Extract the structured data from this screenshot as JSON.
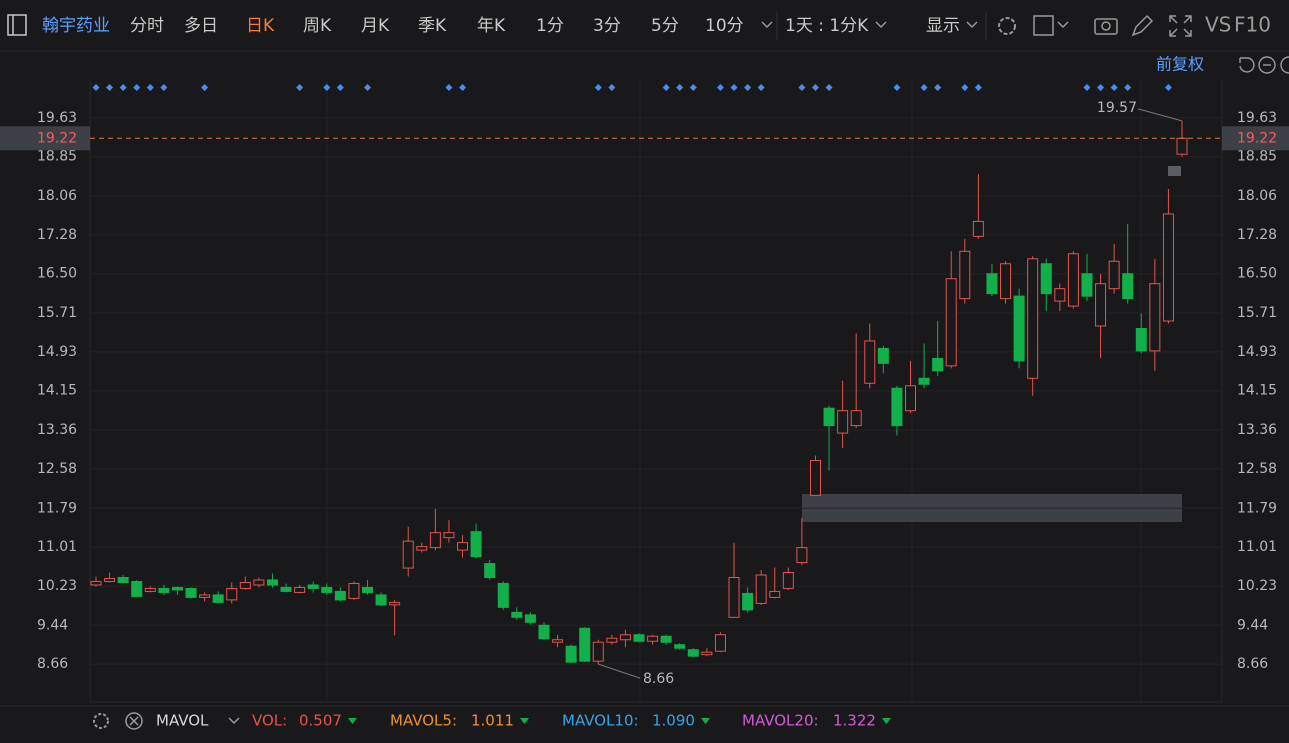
{
  "toolbar": {
    "stock": "翰宇药业",
    "periods": [
      "分时",
      "多日",
      "日K",
      "周K",
      "月K",
      "季K",
      "年K",
      "1分",
      "3分",
      "5分",
      "10分"
    ],
    "interval": "1天 : 1分K",
    "display": "显示",
    "vs": "VS",
    "f10": "F10"
  },
  "adjust": "前复权",
  "chart_data": {
    "type": "candlestick",
    "up_color": "#e5534b",
    "down_color": "#12b04a",
    "ylim": [
      7.94,
      20.39
    ],
    "yticks": [
      19.63,
      18.85,
      18.06,
      17.28,
      {
        "value": 16.5,
        "label": "16.50"
      },
      15.71,
      14.93,
      14.15,
      13.36,
      12.58,
      11.79,
      11.01,
      10.23,
      9.44,
      8.66
    ],
    "grid": true,
    "last_price": 19.22,
    "high_label": 19.57,
    "low_label": 8.66,
    "events": [
      0,
      1,
      2,
      3,
      4,
      5,
      8,
      15,
      17,
      18,
      20,
      26,
      27,
      37,
      38,
      42,
      43,
      44,
      46,
      47,
      48,
      49,
      52,
      53,
      54,
      59,
      61,
      62,
      64,
      65,
      73,
      74,
      75,
      76,
      79
    ],
    "candles": [
      [
        10.25,
        10.42,
        10.22,
        10.32
      ],
      [
        10.32,
        10.5,
        10.3,
        10.38
      ],
      [
        10.4,
        10.45,
        10.28,
        10.3
      ],
      [
        10.32,
        10.35,
        10.0,
        10.02
      ],
      [
        10.12,
        10.22,
        10.1,
        10.18
      ],
      [
        10.18,
        10.25,
        10.05,
        10.1
      ],
      [
        10.2,
        10.22,
        10.05,
        10.15
      ],
      [
        10.18,
        10.2,
        9.98,
        10.0
      ],
      [
        10.0,
        10.1,
        9.92,
        10.05
      ],
      [
        10.05,
        10.12,
        9.88,
        9.9
      ],
      [
        9.95,
        10.3,
        9.88,
        10.18
      ],
      [
        10.18,
        10.42,
        10.15,
        10.3
      ],
      [
        10.25,
        10.4,
        10.2,
        10.35
      ],
      [
        10.35,
        10.48,
        10.2,
        10.25
      ],
      [
        10.2,
        10.28,
        10.1,
        10.12
      ],
      [
        10.1,
        10.25,
        10.08,
        10.2
      ],
      [
        10.25,
        10.32,
        10.1,
        10.18
      ],
      [
        10.2,
        10.28,
        10.05,
        10.1
      ],
      [
        10.12,
        10.2,
        9.92,
        9.95
      ],
      [
        9.98,
        10.32,
        9.95,
        10.28
      ],
      [
        10.2,
        10.35,
        10.05,
        10.1
      ],
      [
        10.05,
        10.1,
        9.82,
        9.85
      ],
      [
        9.85,
        9.95,
        9.24,
        9.9
      ],
      [
        10.59,
        11.42,
        10.42,
        11.13
      ],
      [
        10.95,
        11.1,
        10.9,
        11.02
      ],
      [
        11.0,
        11.78,
        10.95,
        11.3
      ],
      [
        11.2,
        11.55,
        11.1,
        11.3
      ],
      [
        10.95,
        11.25,
        10.8,
        11.1
      ],
      [
        11.32,
        11.48,
        10.78,
        10.82
      ],
      [
        10.68,
        10.75,
        10.35,
        10.4
      ],
      [
        10.28,
        10.32,
        9.75,
        9.8
      ],
      [
        9.7,
        9.8,
        9.55,
        9.6
      ],
      [
        9.65,
        9.7,
        9.45,
        9.5
      ],
      [
        9.44,
        9.5,
        9.15,
        9.17
      ],
      [
        9.1,
        9.25,
        9.0,
        9.15
      ],
      [
        9.02,
        9.05,
        8.68,
        8.7
      ],
      [
        9.38,
        9.4,
        8.7,
        8.72
      ],
      [
        8.72,
        9.15,
        8.66,
        9.1
      ],
      [
        9.1,
        9.25,
        9.05,
        9.18
      ],
      [
        9.15,
        9.35,
        9.0,
        9.25
      ],
      [
        9.25,
        9.28,
        9.1,
        9.12
      ],
      [
        9.12,
        9.25,
        9.05,
        9.22
      ],
      [
        9.22,
        9.25,
        9.05,
        9.1
      ],
      [
        9.05,
        9.08,
        8.95,
        8.98
      ],
      [
        8.95,
        8.98,
        8.8,
        8.82
      ],
      [
        8.85,
        8.98,
        8.82,
        8.9
      ],
      [
        8.92,
        9.3,
        8.9,
        9.25
      ],
      [
        9.6,
        11.1,
        9.6,
        10.4
      ],
      [
        10.08,
        10.2,
        9.7,
        9.75
      ],
      [
        9.88,
        10.55,
        9.85,
        10.45
      ],
      [
        10.0,
        10.6,
        9.98,
        10.12
      ],
      [
        10.18,
        10.6,
        10.15,
        10.5
      ],
      [
        10.7,
        11.6,
        10.65,
        11.0
      ],
      [
        12.05,
        12.85,
        12.05,
        12.75
      ],
      [
        13.8,
        13.85,
        12.55,
        13.45
      ],
      [
        13.3,
        14.35,
        13.0,
        13.75
      ],
      [
        13.45,
        15.3,
        13.4,
        13.75
      ],
      [
        14.3,
        15.5,
        14.2,
        15.15
      ],
      [
        15.0,
        15.05,
        14.5,
        14.7
      ],
      [
        14.2,
        14.25,
        13.25,
        13.45
      ],
      [
        13.75,
        14.75,
        13.7,
        14.25
      ],
      [
        14.4,
        15.1,
        14.2,
        14.28
      ],
      [
        14.8,
        15.55,
        14.45,
        14.55
      ],
      [
        14.65,
        16.95,
        14.6,
        16.4
      ],
      [
        16.0,
        17.2,
        15.9,
        16.95
      ],
      [
        17.25,
        18.5,
        17.2,
        17.55
      ],
      [
        16.5,
        16.7,
        16.05,
        16.1
      ],
      [
        16.0,
        16.75,
        15.9,
        16.7
      ],
      [
        16.05,
        16.2,
        14.6,
        14.75
      ],
      [
        14.4,
        16.85,
        14.05,
        16.8
      ],
      [
        16.7,
        16.8,
        15.75,
        16.1
      ],
      [
        15.95,
        16.3,
        15.75,
        16.2
      ],
      [
        15.85,
        16.95,
        15.8,
        16.9
      ],
      [
        16.5,
        16.9,
        15.95,
        16.05
      ],
      [
        15.45,
        16.5,
        14.8,
        16.3
      ],
      [
        16.2,
        17.1,
        16.1,
        16.75
      ],
      [
        16.5,
        17.5,
        15.9,
        16.0
      ],
      [
        15.4,
        15.7,
        14.9,
        14.95
      ],
      [
        14.95,
        16.8,
        14.55,
        16.3
      ],
      [
        15.55,
        18.2,
        15.5,
        17.7
      ],
      [
        18.9,
        19.57,
        18.85,
        19.22
      ]
    ]
  },
  "indicator": {
    "name": "MAVOL",
    "items": [
      {
        "label": "VOL:",
        "value": "0.507",
        "color": "#e5534b"
      },
      {
        "label": "MAVOL5:",
        "value": "1.011",
        "color": "#f0902a"
      },
      {
        "label": "MAVOL10:",
        "value": "1.090",
        "color": "#35a4e8"
      },
      {
        "label": "MAVOL20:",
        "value": "1.322",
        "color": "#d45bd6"
      }
    ]
  }
}
